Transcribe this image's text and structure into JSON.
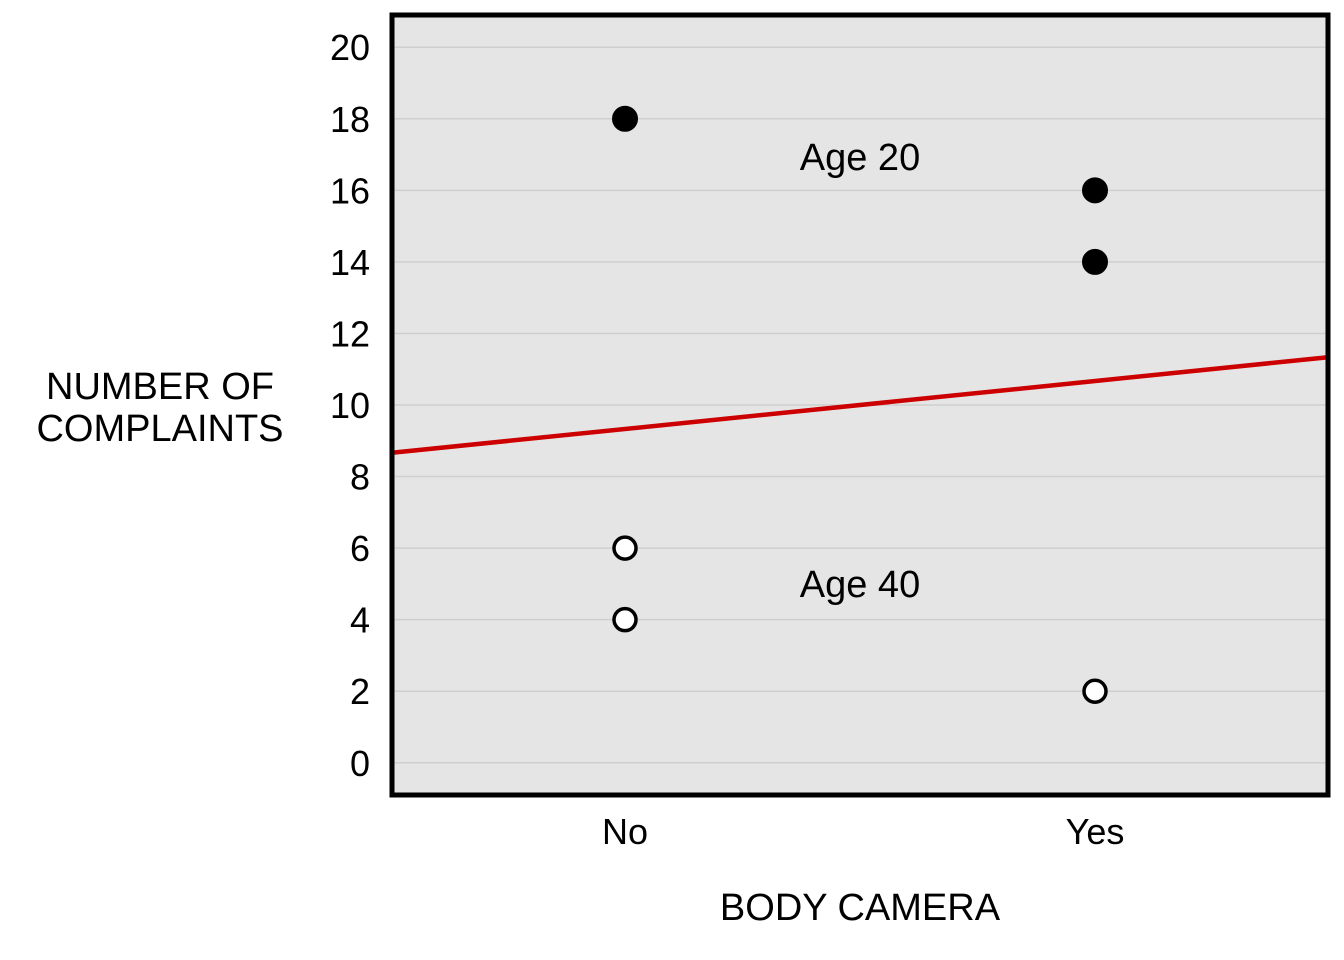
{
  "chart_data": {
    "type": "scatter",
    "xlabel": "BODY CAMERA",
    "ylabel_lines": [
      "NUMBER OF",
      "COMPLAINTS"
    ],
    "categories": [
      "No",
      "Yes"
    ],
    "y_ticks": [
      0,
      2,
      4,
      6,
      8,
      10,
      12,
      14,
      16,
      18,
      20
    ],
    "ylim": [
      -0.9,
      20.9
    ],
    "grid": true,
    "series": [
      {
        "name": "Age 20",
        "marker": "filled-circle",
        "points": [
          {
            "x": "No",
            "y": 18
          },
          {
            "x": "Yes",
            "y": 16
          },
          {
            "x": "Yes",
            "y": 14
          }
        ]
      },
      {
        "name": "Age 40",
        "marker": "open-circle",
        "points": [
          {
            "x": "No",
            "y": 6
          },
          {
            "x": "No",
            "y": 4
          },
          {
            "x": "Yes",
            "y": 2
          }
        ]
      }
    ],
    "trend_line": {
      "color": "#cc0000",
      "y_at_No": 9.33,
      "y_at_Yes": 10.67
    },
    "colors": {
      "plot_background": "#e5e5e5",
      "grid": "#cfcfcf",
      "trend": "#cc0000"
    }
  }
}
